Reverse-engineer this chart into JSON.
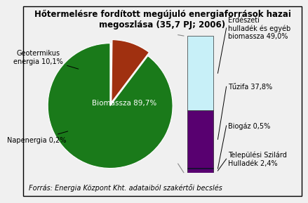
{
  "title": "Hőtermelésre fordított megújuló energiaforrások hazai\nmegoszlása (35,7 PJ; 2006)",
  "pie_values": [
    89.7,
    10.1,
    0.2
  ],
  "pie_colors": [
    "#1a7a1a",
    "#a03010",
    "#ffffff"
  ],
  "pie_startangle": 90,
  "bar_segments": [
    {
      "label": "Erdészeti\nhulladék és egyéb\nbiomassza 49,0%",
      "value": 49.0,
      "color": "#c8f0f8"
    },
    {
      "label": "Tűzifa 37,8%",
      "value": 37.8,
      "color": "#580070"
    },
    {
      "label": "Biogáz 0,5%",
      "value": 0.5,
      "color": "#2222cc"
    },
    {
      "label": "Települési Szilárd\nHulladék 2,4%",
      "value": 2.4,
      "color": "#580070"
    }
  ],
  "biomassza_label": "Biomassza 89,7%",
  "geotermikus_label": "Geotermikus\nenergia 10,1%",
  "napenergia_label": "Napenergia 0,2%",
  "source_text": "Forrás: Energia Központ Kht. adataiból szakértői becslés",
  "background_color": "#f0f0f0",
  "border_color": "#000000",
  "title_fontsize": 8.5,
  "label_fontsize": 7,
  "source_fontsize": 7
}
